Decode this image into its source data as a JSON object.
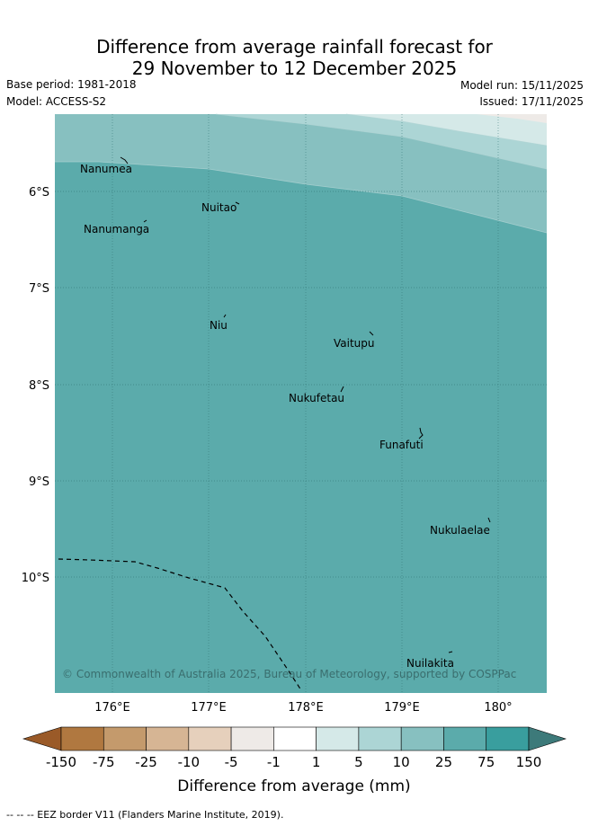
{
  "title": {
    "line1": "Difference from average rainfall forecast for",
    "line2": "29 November to 12 December 2025"
  },
  "meta": {
    "base_period": "Base period: 1981-2018",
    "model": "Model: ACCESS-S2",
    "model_run": "Model run: 15/11/2025",
    "issued": "Issued: 17/11/2025"
  },
  "map": {
    "lat_labels": [
      "6°S",
      "7°S",
      "8°S",
      "9°S",
      "10°S"
    ],
    "lon_labels": [
      "176°E",
      "177°E",
      "178°E",
      "179°E",
      "180°"
    ],
    "islands": [
      {
        "name": "Nanumea"
      },
      {
        "name": "Nuitao"
      },
      {
        "name": "Nanumanga"
      },
      {
        "name": "Niu"
      },
      {
        "name": "Vaitupu"
      },
      {
        "name": "Nukufetau"
      },
      {
        "name": "Funafuti"
      },
      {
        "name": "Nukulaelae"
      },
      {
        "name": "Nuilakita"
      }
    ],
    "copyright": "© Commonwealth of Australia 2025, Bureau of Meteorology, supported by COSPPac"
  },
  "colorbar": {
    "labels": [
      "-150",
      "-75",
      "-25",
      "-10",
      "-5",
      "-1",
      "1",
      "5",
      "10",
      "25",
      "75",
      "150"
    ],
    "colors": [
      "#b07840",
      "#c49a6c",
      "#d6b594",
      "#e6d0bc",
      "#eeeae7",
      "#ffffff",
      "#d5e9e8",
      "#acd5d5",
      "#87c0c0",
      "#5babab",
      "#399e9e",
      "#3d7a7a",
      "#9a5a28"
    ],
    "title": "Difference from average (mm)"
  },
  "footer": "--  --  -- EEZ border V11 (Flanders Marine Institute, 2019)."
}
